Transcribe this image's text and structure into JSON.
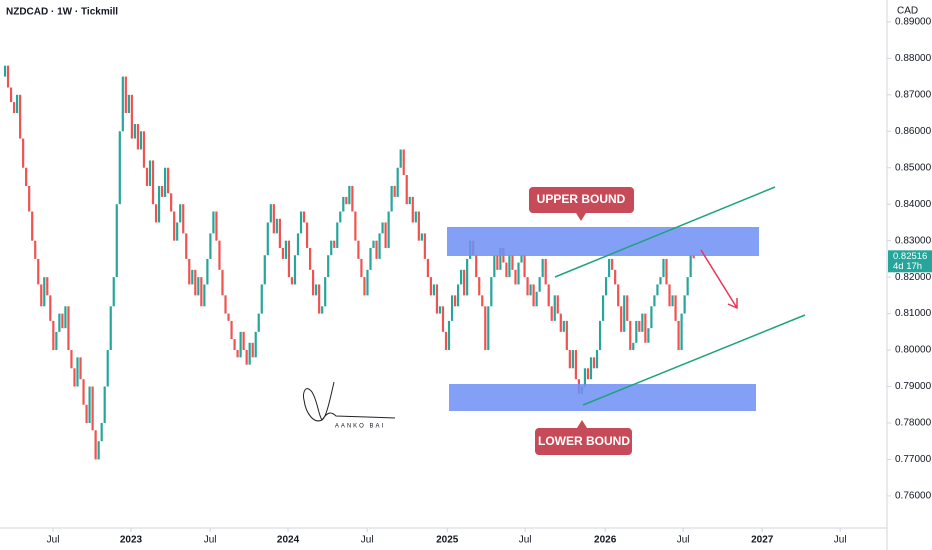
{
  "chart_data": {
    "type": "candlestick",
    "title": "NZDCAD · 1W · Tickmill",
    "currency": "CAD",
    "up_color": "#26a69a",
    "down_color": "#ef5350",
    "close": [
      0.875,
      0.878,
      0.872,
      0.868,
      0.865,
      0.87,
      0.858,
      0.85,
      0.845,
      0.838,
      0.83,
      0.825,
      0.818,
      0.812,
      0.82,
      0.815,
      0.808,
      0.8,
      0.805,
      0.81,
      0.806,
      0.812,
      0.8,
      0.795,
      0.79,
      0.798,
      0.792,
      0.785,
      0.78,
      0.79,
      0.778,
      0.77,
      0.775,
      0.78,
      0.79,
      0.8,
      0.812,
      0.82,
      0.84,
      0.86,
      0.875,
      0.865,
      0.87,
      0.858,
      0.862,
      0.855,
      0.86,
      0.85,
      0.845,
      0.852,
      0.84,
      0.835,
      0.845,
      0.842,
      0.85,
      0.843,
      0.838,
      0.83,
      0.835,
      0.84,
      0.832,
      0.825,
      0.818,
      0.822,
      0.815,
      0.82,
      0.812,
      0.818,
      0.825,
      0.832,
      0.838,
      0.83,
      0.822,
      0.815,
      0.81,
      0.808,
      0.803,
      0.8,
      0.798,
      0.805,
      0.8,
      0.796,
      0.802,
      0.798,
      0.805,
      0.81,
      0.818,
      0.826,
      0.835,
      0.84,
      0.832,
      0.836,
      0.828,
      0.825,
      0.83,
      0.82,
      0.818,
      0.826,
      0.832,
      0.838,
      0.835,
      0.828,
      0.822,
      0.815,
      0.818,
      0.81,
      0.812,
      0.82,
      0.826,
      0.83,
      0.828,
      0.835,
      0.838,
      0.842,
      0.84,
      0.845,
      0.838,
      0.83,
      0.825,
      0.82,
      0.815,
      0.822,
      0.828,
      0.83,
      0.825,
      0.832,
      0.835,
      0.828,
      0.838,
      0.845,
      0.842,
      0.85,
      0.855,
      0.848,
      0.84,
      0.842,
      0.835,
      0.838,
      0.83,
      0.832,
      0.825,
      0.82,
      0.815,
      0.818,
      0.81,
      0.812,
      0.805,
      0.8,
      0.808,
      0.815,
      0.812,
      0.818,
      0.822,
      0.815,
      0.825,
      0.83,
      0.826,
      0.82,
      0.815,
      0.812,
      0.8,
      0.812,
      0.82,
      0.826,
      0.822,
      0.828,
      0.824,
      0.82,
      0.826,
      0.822,
      0.818,
      0.824,
      0.826,
      0.82,
      0.815,
      0.818,
      0.812,
      0.816,
      0.82,
      0.825,
      0.818,
      0.812,
      0.808,
      0.815,
      0.81,
      0.805,
      0.808,
      0.8,
      0.795,
      0.8,
      0.792,
      0.788,
      0.79,
      0.795,
      0.792,
      0.798,
      0.795,
      0.8,
      0.808,
      0.815,
      0.82,
      0.825,
      0.822,
      0.818,
      0.812,
      0.805,
      0.815,
      0.808,
      0.8,
      0.802,
      0.808,
      0.805,
      0.81,
      0.802,
      0.806,
      0.812,
      0.815,
      0.818,
      0.82,
      0.825,
      0.818,
      0.812,
      0.815,
      0.808,
      0.8,
      0.81,
      0.815,
      0.82,
      0.826,
      0.82516
    ],
    "xlim": [
      -0.66,
      293
    ],
    "xticks": [
      {
        "value": 16.9,
        "label": "Jul"
      },
      {
        "value": 42.7,
        "label": "2023"
      },
      {
        "value": 68.9,
        "label": "Jul"
      },
      {
        "value": 94.7,
        "label": "2024"
      },
      {
        "value": 120.9,
        "label": "Jul"
      },
      {
        "value": 147.4,
        "label": "2025"
      },
      {
        "value": 173.2,
        "label": "Jul"
      },
      {
        "value": 199.7,
        "label": "2026"
      },
      {
        "value": 225.5,
        "label": "Jul"
      },
      {
        "value": 251.7,
        "label": "2027"
      },
      {
        "value": 277.5,
        "label": "Jul"
      }
    ],
    "ylim": [
      0.7512,
      0.896
    ],
    "yticks": [
      {
        "value": 0.76,
        "label": "0.76000"
      },
      {
        "value": 0.77,
        "label": "0.77000"
      },
      {
        "value": 0.78,
        "label": "0.78000"
      },
      {
        "value": 0.79,
        "label": "0.79000"
      },
      {
        "value": 0.8,
        "label": "0.80000"
      },
      {
        "value": 0.81,
        "label": "0.81000"
      },
      {
        "value": 0.82,
        "label": "0.82000"
      },
      {
        "value": 0.83,
        "label": "0.83000"
      },
      {
        "value": 0.84,
        "label": "0.84000"
      },
      {
        "value": 0.85,
        "label": "0.85000"
      },
      {
        "value": 0.86,
        "label": "0.86000"
      },
      {
        "value": 0.87,
        "label": "0.87000"
      },
      {
        "value": 0.88,
        "label": "0.88000"
      },
      {
        "value": 0.89,
        "label": "0.89000"
      }
    ],
    "last_price": 0.82516,
    "countdown": "4d 17h",
    "upper_label": "UPPER BOUND",
    "lower_label": "LOWER BOUND",
    "signature": "AANKO BAI"
  }
}
